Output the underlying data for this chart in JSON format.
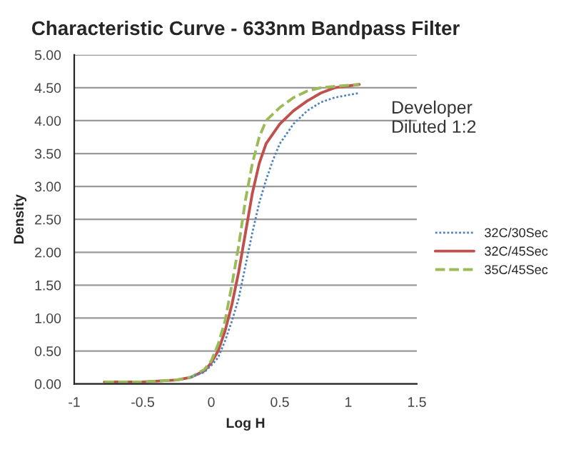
{
  "chart_data": {
    "type": "line",
    "title": "Characteristic Curve - 633nm Bandpass Filter",
    "xlabel": "Log H",
    "ylabel": "Density",
    "annotations": [
      "Developer\nDiluted 1:2"
    ],
    "xlim": [
      -1,
      1.5
    ],
    "xticks": [
      -1,
      -0.5,
      0,
      0.5,
      1,
      1.5
    ],
    "ylim": [
      0,
      5
    ],
    "yticks": [
      {
        "value": 0,
        "label": "0.00"
      },
      {
        "value": 0.5,
        "label": "0.50"
      },
      {
        "value": 1,
        "label": "1.00"
      },
      {
        "value": 1.5,
        "label": "1.50"
      },
      {
        "value": 2,
        "label": "2.00"
      },
      {
        "value": 2.5,
        "label": "2.50"
      },
      {
        "value": 3,
        "label": "3.00"
      },
      {
        "value": 3.5,
        "label": "3.50"
      },
      {
        "value": 4,
        "label": "4.00"
      },
      {
        "value": 4.5,
        "label": "4.50"
      },
      {
        "value": 5,
        "label": "5.00"
      }
    ],
    "grid": "y",
    "legend": "right",
    "series": [
      {
        "name": "32C/30Sec",
        "color": "#4f81bd",
        "line_style": "dotted",
        "x": [
          -0.15,
          -0.05,
          0,
          0.05,
          0.1,
          0.15,
          0.2,
          0.25,
          0.3,
          0.35,
          0.4,
          0.45,
          0.5,
          0.6,
          0.7,
          0.8,
          0.9,
          1.08
        ],
        "values": [
          0.1,
          0.18,
          0.28,
          0.4,
          0.65,
          0.95,
          1.3,
          1.8,
          2.3,
          2.75,
          3.1,
          3.4,
          3.65,
          3.95,
          4.15,
          4.28,
          4.35,
          4.42
        ]
      },
      {
        "name": "32C/45Sec",
        "color": "#c0504d",
        "line_style": "solid",
        "x": [
          -0.78,
          -0.5,
          -0.25,
          -0.15,
          -0.05,
          0,
          0.05,
          0.1,
          0.15,
          0.2,
          0.25,
          0.3,
          0.35,
          0.4,
          0.5,
          0.6,
          0.7,
          0.8,
          0.9,
          1.08
        ],
        "values": [
          0.03,
          0.03,
          0.06,
          0.1,
          0.2,
          0.32,
          0.5,
          0.8,
          1.2,
          1.7,
          2.3,
          2.9,
          3.35,
          3.65,
          3.95,
          4.15,
          4.3,
          4.42,
          4.5,
          4.55
        ]
      },
      {
        "name": "35C/45Sec",
        "color": "#9bbb59",
        "line_style": "dashed",
        "x": [
          -0.78,
          -0.5,
          -0.25,
          -0.15,
          -0.05,
          0,
          0.05,
          0.1,
          0.15,
          0.2,
          0.25,
          0.3,
          0.35,
          0.4,
          0.5,
          0.6,
          0.7,
          0.8,
          0.9,
          1.08
        ],
        "values": [
          0.03,
          0.03,
          0.06,
          0.1,
          0.22,
          0.35,
          0.6,
          0.95,
          1.5,
          2.1,
          2.8,
          3.35,
          3.75,
          4.0,
          4.2,
          4.35,
          4.45,
          4.5,
          4.52,
          4.55
        ]
      }
    ]
  }
}
